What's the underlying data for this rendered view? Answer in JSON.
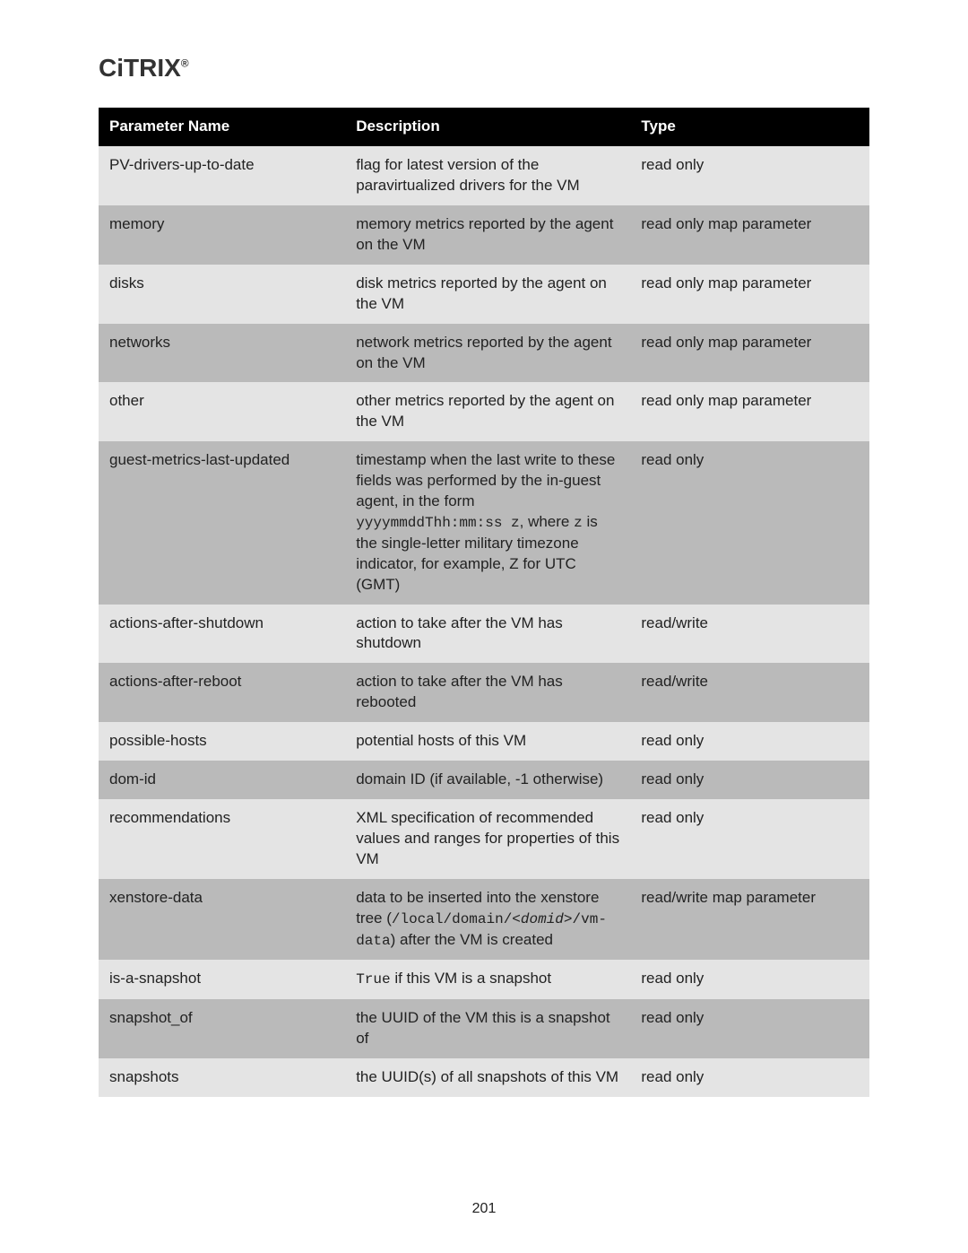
{
  "logo_text": "CİTRIX",
  "page_number": "201",
  "table": {
    "header": {
      "name": "Parameter Name",
      "description": "Description",
      "type": "Type"
    },
    "rows": [
      {
        "name": "PV-drivers-up-to-date",
        "description_html": "flag for latest version of the paravirtualized drivers for the VM",
        "type": "read only"
      },
      {
        "name": "memory",
        "description_html": "memory metrics reported by the agent on the VM",
        "type": "read only map parameter"
      },
      {
        "name": "disks",
        "description_html": "disk metrics reported by the agent on the VM",
        "type": "read only map parameter"
      },
      {
        "name": "networks",
        "description_html": "network metrics reported by the agent on the VM",
        "type": "read only map parameter"
      },
      {
        "name": "other",
        "description_html": "other metrics reported by the agent on the VM",
        "type": "read only map parameter"
      },
      {
        "name": "guest-metrics-last-updated",
        "description_html": "timestamp when the last write to these fields was performed by the in-guest agent, in the form <span class=\"mono\">yyyymmddThh:mm:ss z</span>, where <span class=\"mono\">z</span> is the single-letter military timezone indicator, for example, Z for UTC (GMT)",
        "type": "read only"
      },
      {
        "name": "actions-after-shutdown",
        "description_html": "action to take after the VM has shutdown",
        "type": "read/write"
      },
      {
        "name": "actions-after-reboot",
        "description_html": "action to take after the VM has rebooted",
        "type": "read/write"
      },
      {
        "name": "possible-hosts",
        "description_html": "potential hosts of this VM",
        "type": "read only"
      },
      {
        "name": "dom-id",
        "description_html": "domain ID (if available, -1 otherwise)",
        "type": "read only"
      },
      {
        "name": "recommendations",
        "description_html": "XML specification of recommended values and ranges for properties of this VM",
        "type": "read only"
      },
      {
        "name": "xenstore-data",
        "description_html": "data to be inserted into the xenstore tree (<span class=\"mono\">/local/domain/<span class=\"italic\">&lt;domid&gt;</span>/vm-data</span>) after the VM is created",
        "type": "read/write map parameter"
      },
      {
        "name": "is-a-snapshot",
        "description_html": "<span class=\"mono\">True</span> if this VM is a snapshot",
        "type": "read only"
      },
      {
        "name": "snapshot_of",
        "description_html": "the UUID of the VM this is a snapshot of",
        "type": "read only"
      },
      {
        "name": "snapshots",
        "description_html": "the UUID(s) of all snapshots of this VM",
        "type": "read only"
      }
    ]
  },
  "style": {
    "header_bg": "#000000",
    "header_color": "#ffffff",
    "row_odd_bg": "#e4e4e4",
    "row_even_bg": "#bababa",
    "font_size_pt": 17,
    "mono_font": "Courier New"
  }
}
